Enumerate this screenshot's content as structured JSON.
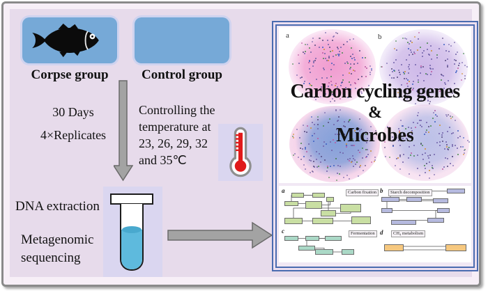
{
  "palette": {
    "frame_border": "#8a8a8a",
    "frame_margin": "#f7eff7",
    "main_bg": "#e7dbeb",
    "group_box_blue": "#76a9d7",
    "patch_lavender": "#dad6f0",
    "arrow_fill": "#a3a3a3",
    "arrow_stroke": "#6a6a6a",
    "tube_liquid": "#5ebadd",
    "tube_liquid_top": "#49a9ce",
    "thermometer_red": "#e01a1a",
    "thermometer_outline": "#8f8f8f",
    "panel_border": "#4a6bb0",
    "panel_margin": "#ecdff0",
    "panel_inner_bg": "#f1e8f4",
    "headline_color": "#111111"
  },
  "workflow": {
    "corpse_group_label": "Corpse group",
    "control_group_label": "Control group",
    "duration_label": "30 Days",
    "replicates_label": "4×Replicates",
    "temperature_lines": [
      "Controlling the",
      "temperature at",
      "23, 26, 29, 32",
      "and 35℃"
    ],
    "dna_label": "DNA extraction",
    "metagenomic_lines": [
      "Metagenomic",
      "sequencing"
    ]
  },
  "result_panel": {
    "headline_line1": "Carbon cycling genes",
    "headline_amp": "&",
    "headline_line2": "Microbes",
    "networks": [
      {
        "label": "a",
        "inner": "#ef94cc",
        "outer": "#f6cdea",
        "fringe": false
      },
      {
        "label": "b",
        "inner": "#c9b2e6",
        "outer": "#e6d9f4",
        "fringe": false
      },
      {
        "label": "",
        "inner": "#7e9fd9",
        "outer": "#eeb0d8",
        "fringe": true
      },
      {
        "label": "",
        "inner": "#b9c0e8",
        "outer": "#f0c9e5",
        "fringe": true
      }
    ],
    "node_colors": [
      "#6f60a8",
      "#55487e",
      "#46894c",
      "#cf8e2e",
      "#3a5ec2",
      "#bb58a0"
    ],
    "pathways": [
      {
        "label": "a",
        "title": "Carbon fixation",
        "box_color": "#c9dfa3"
      },
      {
        "label": "b",
        "title": "Starch decomposition",
        "box_color": "#b6badf"
      },
      {
        "label": "c",
        "title": "Fermentation",
        "box_color": "#abd9c7"
      },
      {
        "label": "d",
        "title": "CH₄ metabolism",
        "box_color": "#f6c87f"
      }
    ]
  }
}
